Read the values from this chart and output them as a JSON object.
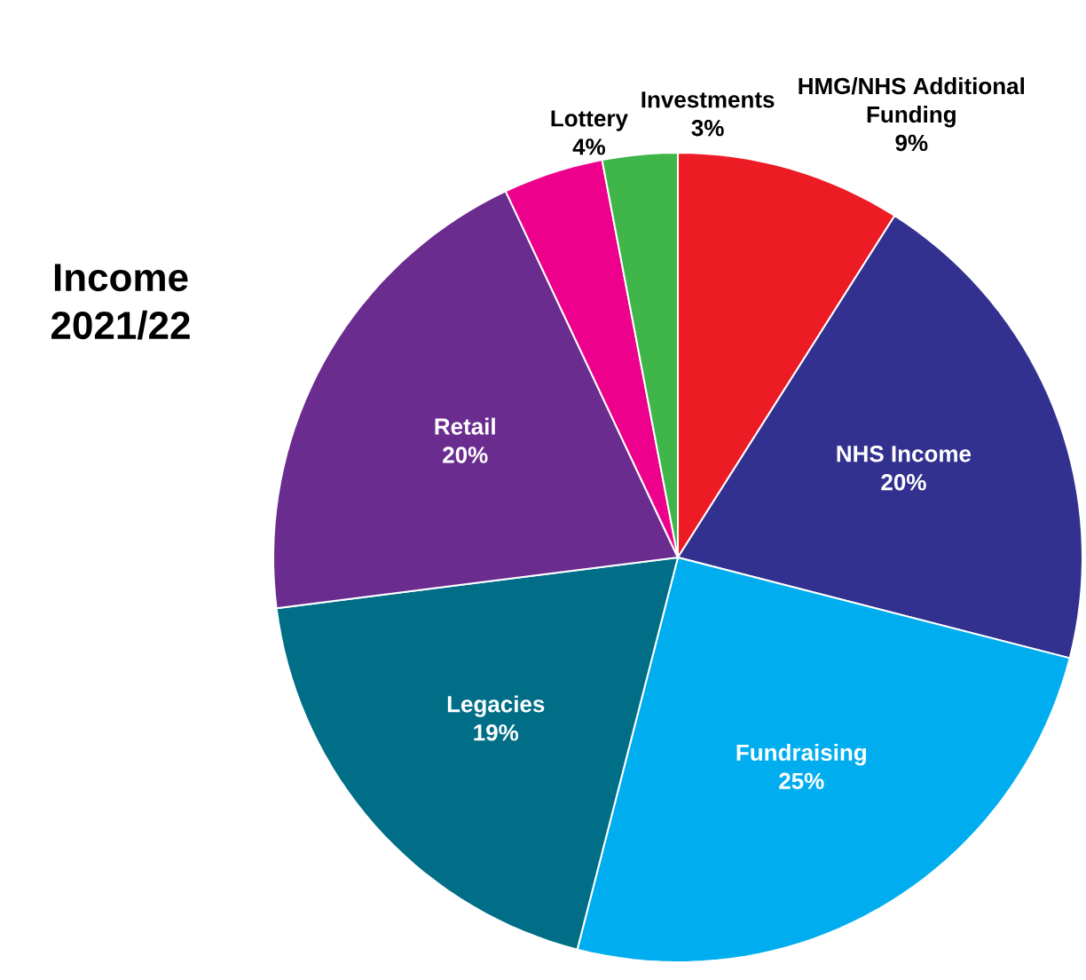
{
  "chart_data": {
    "type": "pie",
    "title": "Income 2021/22",
    "categories": [
      "HMG/NHS Additional Funding",
      "NHS Income",
      "Fundraising",
      "Legacies",
      "Retail",
      "Lottery",
      "Investments"
    ],
    "values": [
      9,
      20,
      25,
      19,
      20,
      4,
      3
    ],
    "value_labels": [
      "9%",
      "20%",
      "25%",
      "19%",
      "20%",
      "4%",
      "3%"
    ],
    "colors": [
      "#ed1c24",
      "#33318f",
      "#00aeef",
      "#006e87",
      "#6a2c8e",
      "#ec008c",
      "#3fb54a"
    ]
  }
}
